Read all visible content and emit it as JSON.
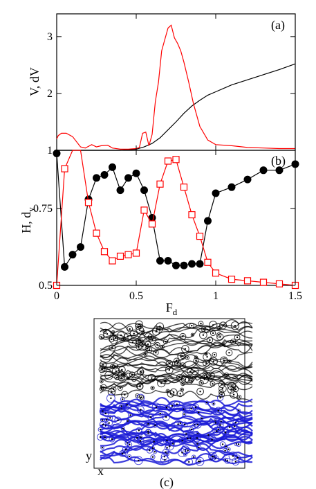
{
  "chart_data": [
    {
      "id": "a",
      "type": "line",
      "panel_label": "(a)",
      "ylabel": "V, dV",
      "xlim": [
        0,
        1.5
      ],
      "ylim": [
        1,
        3.4
      ],
      "yticks": [
        "1",
        "2",
        "3"
      ],
      "yticks_values": [
        1,
        2,
        3
      ],
      "series": [
        {
          "color": "#000000",
          "x": [
            0,
            0.4,
            0.5,
            0.55,
            0.6,
            0.65,
            0.7,
            0.75,
            0.8,
            0.85,
            0.9,
            0.95,
            1.0,
            1.1,
            1.2,
            1.3,
            1.4,
            1.5
          ],
          "values": [
            1.0,
            1.0,
            1.02,
            1.06,
            1.12,
            1.22,
            1.36,
            1.5,
            1.65,
            1.78,
            1.88,
            1.97,
            2.03,
            2.15,
            2.24,
            2.33,
            2.42,
            2.52
          ]
        },
        {
          "color": "#ff0000",
          "x": [
            0,
            0.01,
            0.03,
            0.06,
            0.1,
            0.15,
            0.18,
            0.22,
            0.25,
            0.28,
            0.32,
            0.35,
            0.4,
            0.45,
            0.5,
            0.52,
            0.54,
            0.56,
            0.58,
            0.6,
            0.62,
            0.64,
            0.66,
            0.68,
            0.7,
            0.72,
            0.74,
            0.76,
            0.78,
            0.8,
            0.83,
            0.86,
            0.9,
            0.95,
            1.0,
            1.1,
            1.2,
            1.3,
            1.4,
            1.5
          ],
          "values": [
            1.2,
            1.26,
            1.3,
            1.3,
            1.24,
            1.06,
            1.04,
            1.1,
            1.06,
            1.08,
            1.09,
            1.04,
            1.02,
            1.02,
            1.03,
            1.05,
            1.3,
            1.32,
            1.08,
            1.28,
            1.85,
            2.2,
            2.75,
            2.95,
            3.15,
            3.2,
            2.98,
            2.88,
            2.75,
            2.55,
            2.2,
            1.82,
            1.42,
            1.18,
            1.1,
            1.08,
            1.05,
            1.04,
            1.03,
            1.03
          ]
        }
      ]
    },
    {
      "id": "b",
      "type": "line",
      "panel_label": "(b)",
      "xlabel": "F",
      "xlabel_sub": "d",
      "ylabel": "H, d",
      "ylabel_sub": "y",
      "xlim": [
        0,
        1.5
      ],
      "ylim": [
        0.5,
        0.94
      ],
      "xticks": [
        "0",
        "0.5",
        "1",
        "1.5"
      ],
      "xticks_values": [
        0,
        0.5,
        1,
        1.5
      ],
      "yticks": [
        "0.5",
        "0.75"
      ],
      "yticks_values": [
        0.5,
        0.75
      ],
      "series": [
        {
          "marker": "filled-circle",
          "color": "#000000",
          "x": [
            0,
            0.05,
            0.1,
            0.15,
            0.2,
            0.25,
            0.3,
            0.35,
            0.4,
            0.45,
            0.5,
            0.55,
            0.6,
            0.65,
            0.7,
            0.75,
            0.8,
            0.85,
            0.9,
            0.95,
            1.0,
            1.1,
            1.2,
            1.3,
            1.4,
            1.5
          ],
          "values": [
            0.93,
            0.56,
            0.6,
            0.625,
            0.78,
            0.85,
            0.86,
            0.885,
            0.81,
            0.85,
            0.865,
            0.81,
            0.72,
            0.58,
            0.58,
            0.565,
            0.565,
            0.57,
            0.57,
            0.71,
            0.8,
            0.82,
            0.845,
            0.875,
            0.875,
            0.895
          ]
        },
        {
          "marker": "open-square",
          "color": "#ff0000",
          "x": [
            0,
            0.05,
            0.1,
            0.15,
            0.2,
            0.25,
            0.3,
            0.35,
            0.4,
            0.45,
            0.5,
            0.55,
            0.6,
            0.65,
            0.7,
            0.75,
            0.8,
            0.85,
            0.9,
            0.95,
            1.0,
            1.1,
            1.2,
            1.3,
            1.4,
            1.5
          ],
          "values": [
            0.5,
            0.88,
            0.98,
            0.98,
            0.77,
            0.67,
            0.61,
            0.58,
            0.595,
            0.6,
            0.605,
            0.745,
            0.7,
            0.83,
            0.905,
            0.91,
            0.82,
            0.73,
            0.66,
            0.575,
            0.54,
            0.52,
            0.515,
            0.51,
            0.505,
            0.5
          ]
        }
      ]
    }
  ],
  "panel_c": {
    "panel_label": "(c)",
    "x_axis_label": "x",
    "y_axis_label": "y",
    "colors": {
      "upper": "#000000",
      "lower": "#1a1ad6"
    }
  }
}
